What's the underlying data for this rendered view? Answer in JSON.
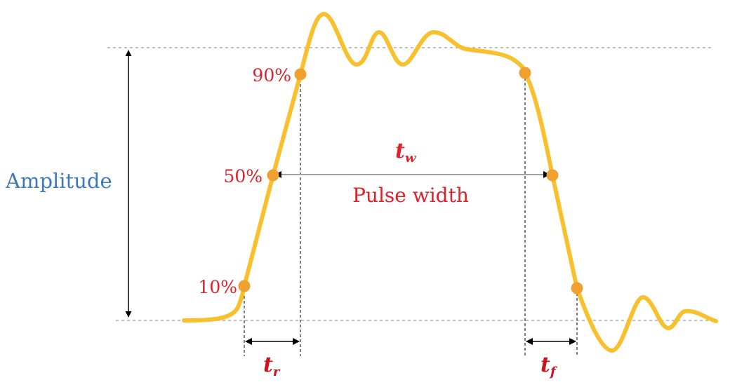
{
  "labels": {
    "amplitude": "Amplitude",
    "pulse_width": "Pulse width",
    "p90": "90%",
    "p50": "50%",
    "p10": "10%",
    "tw_main": "t",
    "tw_sub": "w",
    "tr_main": "t",
    "tr_sub": "r",
    "tf_main": "t",
    "tf_sub": "f"
  },
  "colors": {
    "waveform": "#F9C02E",
    "marker": "#F0A02E",
    "label_red": "#E0202A",
    "amplitude_blue": "#3A7BB8",
    "guide_gray": "#9A9A9A",
    "arrow_black": "#000000",
    "width_arrow_gray": "#A0A0A0"
  }
}
